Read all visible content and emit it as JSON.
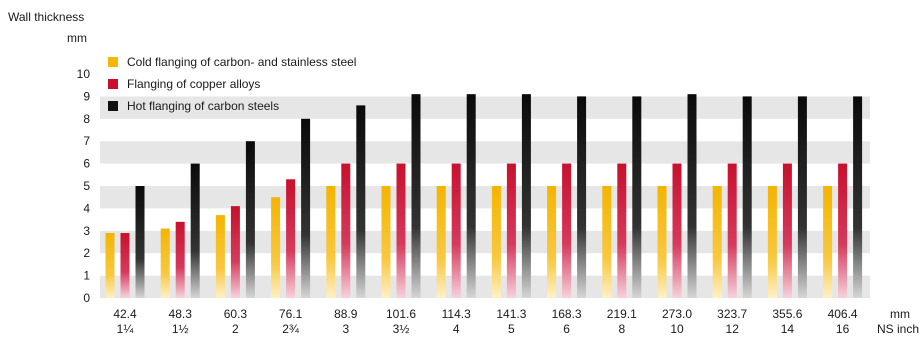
{
  "chart_data": {
    "type": "bar",
    "ylabel": "Wall thickness",
    "yunit": "mm",
    "xunit_mm": "mm",
    "xunit_ns": "NS inch",
    "ylim": [
      0,
      10
    ],
    "yticks": [
      "0",
      "1",
      "2",
      "3",
      "4",
      "5",
      "6",
      "7",
      "8",
      "9",
      "10"
    ],
    "grid": "alternating horizontal bands",
    "legend_position": "top-left",
    "categories": [
      "42.4",
      "48.3",
      "60.3",
      "76.1",
      "88.9",
      "101.6",
      "114.3",
      "141.3",
      "168.3",
      "219.1",
      "273.0",
      "323.7",
      "355.6",
      "406.4"
    ],
    "categories_ns": [
      "1¼",
      "1½",
      "2",
      "2¾",
      "3",
      "3½",
      "4",
      "5",
      "6",
      "8",
      "10",
      "12",
      "14",
      "16"
    ],
    "series": [
      {
        "name": "Cold flanging of carbon- and stainless steel",
        "color": "#f5b800",
        "values": [
          2.9,
          3.1,
          3.7,
          4.5,
          5.0,
          5.0,
          5.0,
          5.0,
          5.0,
          5.0,
          5.0,
          5.0,
          5.0,
          5.0
        ]
      },
      {
        "name": "Flanging of copper alloys",
        "color": "#c8102e",
        "values": [
          2.9,
          3.4,
          4.1,
          5.3,
          6.0,
          6.0,
          6.0,
          6.0,
          6.0,
          6.0,
          6.0,
          6.0,
          6.0,
          6.0
        ]
      },
      {
        "name": "Hot flanging of carbon steels",
        "color": "#111111",
        "values": [
          5.0,
          6.0,
          7.0,
          8.0,
          8.6,
          9.1,
          9.1,
          9.1,
          9.0,
          9.0,
          9.1,
          9.0,
          9.0,
          9.0
        ]
      }
    ]
  }
}
